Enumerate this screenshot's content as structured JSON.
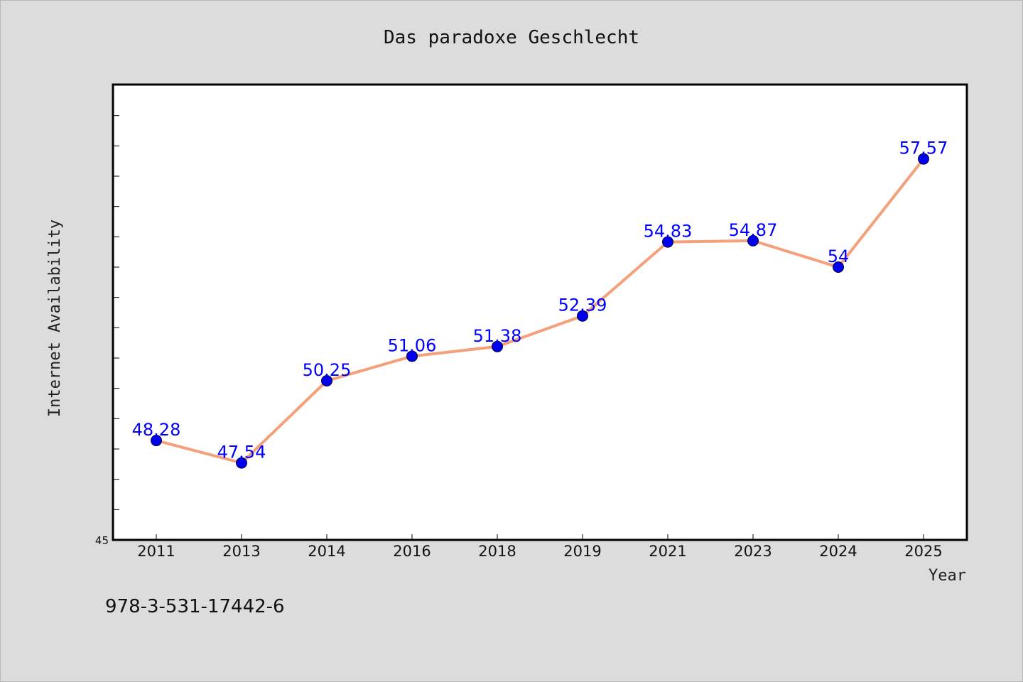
{
  "chart_data": {
    "type": "line",
    "title": "Das paradoxe Geschlecht",
    "xlabel": "Year",
    "ylabel": "Internet Availability",
    "categories": [
      "2011",
      "2013",
      "2014",
      "2016",
      "2018",
      "2019",
      "2021",
      "2023",
      "2024",
      "2025"
    ],
    "series": [
      {
        "values": [
          48.28,
          47.54,
          50.25,
          51.06,
          51.38,
          52.39,
          54.83,
          54.87,
          54,
          57.57
        ],
        "data_labels": [
          "48.28",
          "47.54",
          "50.25",
          "51.06",
          "51.38",
          "52.39",
          "54.83",
          "54.87",
          "54",
          "57.57"
        ],
        "line_color": "#f4a07a",
        "marker_color": "#0000ee"
      }
    ],
    "ylim": [
      45,
      60
    ],
    "yticks_labeled": [
      "45"
    ],
    "grid": false,
    "legend": "none"
  },
  "footer": {
    "isbn": "978-3-531-17442-6"
  },
  "colors": {
    "background": "#dcdcdc",
    "plot_background": "#ffffff",
    "label_color": "#0000ff"
  }
}
